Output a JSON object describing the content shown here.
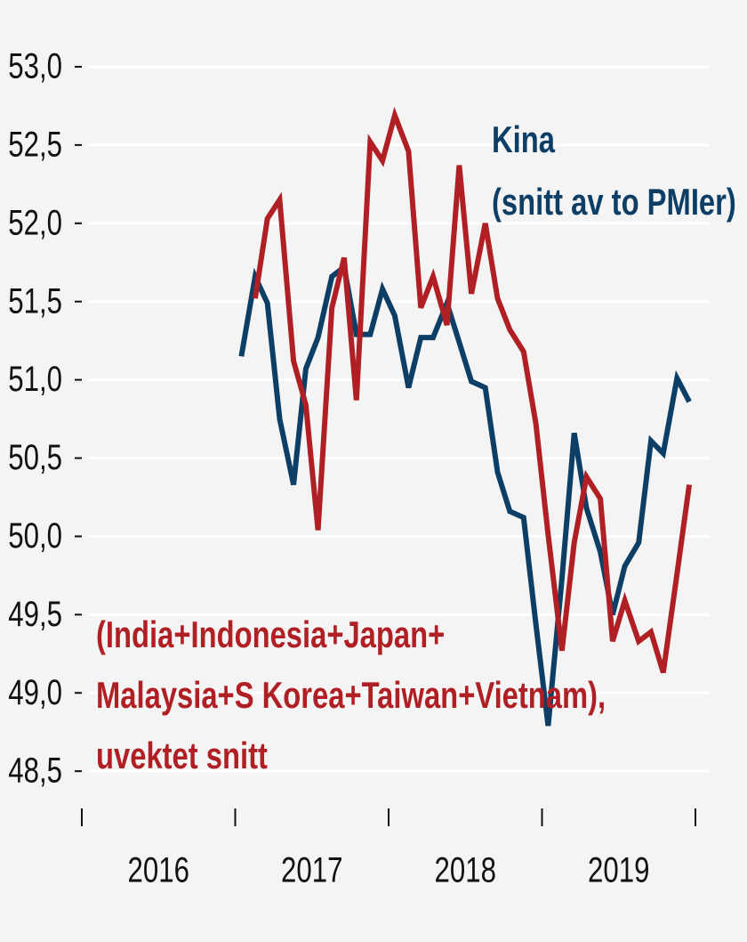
{
  "chart_data": {
    "type": "line",
    "x": [
      2017.04,
      2017.13,
      2017.21,
      2017.29,
      2017.38,
      2017.46,
      2017.54,
      2017.63,
      2017.71,
      2017.79,
      2017.88,
      2017.96,
      2018.04,
      2018.13,
      2018.21,
      2018.29,
      2018.38,
      2018.46,
      2018.54,
      2018.63,
      2018.71,
      2018.79,
      2018.88,
      2018.96,
      2019.04,
      2019.13,
      2019.21,
      2019.29,
      2019.38,
      2019.46,
      2019.54,
      2019.63,
      2019.71,
      2019.79,
      2019.88,
      2019.96
    ],
    "series": [
      {
        "color": "#0d3f66",
        "values": [
          51.15,
          51.66,
          51.49,
          50.75,
          50.33,
          51.07,
          51.27,
          51.66,
          51.72,
          51.29,
          51.29,
          51.58,
          51.41,
          50.95,
          51.27,
          51.27,
          51.49,
          51.24,
          50.99,
          50.95,
          50.41,
          50.16,
          50.12,
          49.44,
          48.79,
          49.73,
          50.66,
          50.18,
          49.9,
          49.5,
          49.81,
          49.96,
          50.61,
          50.53,
          51.01,
          50.86
        ]
      },
      {
        "color": "#b01f24",
        "values": [
          null,
          51.52,
          52.03,
          52.15,
          51.12,
          50.84,
          50.04,
          51.46,
          51.78,
          50.87,
          52.52,
          52.4,
          52.69,
          52.46,
          51.46,
          51.66,
          51.35,
          52.37,
          51.55,
          52.0,
          51.52,
          51.32,
          51.18,
          50.72,
          50.01,
          49.27,
          49.96,
          50.38,
          50.24,
          49.33,
          49.59,
          49.33,
          49.39,
          49.13,
          49.76,
          50.33
        ]
      }
    ],
    "xlim": [
      2016,
      2020
    ],
    "xticks": [
      2016,
      2017,
      2018,
      2019,
      2020
    ],
    "year_labels": [
      "2016",
      "2017",
      "2018",
      "2019"
    ],
    "ylim": [
      48.3,
      53.1
    ],
    "yticks": [
      {
        "value": 48.5,
        "label": "48,5"
      },
      {
        "value": 49,
        "label": "49,0"
      },
      {
        "value": 49.5,
        "label": "49,5"
      },
      {
        "value": 50,
        "label": "50,0"
      },
      {
        "value": 50.5,
        "label": "50,5"
      },
      {
        "value": 51,
        "label": "51,0"
      },
      {
        "value": 51.5,
        "label": "51,5"
      },
      {
        "value": 52,
        "label": "52,0"
      },
      {
        "value": 52.5,
        "label": "52,5"
      },
      {
        "value": 53,
        "label": "53,0"
      }
    ],
    "grid": true,
    "annotations": [
      {
        "color": "#0d3f66",
        "text": [
          "Kina",
          "(snitt av to PMIer)"
        ]
      },
      {
        "color": "#b01f24",
        "text": [
          "(India+Indonesia+Japan+",
          "Malaysia+S Korea+Taiwan+Vietnam),",
          "uvektet snitt"
        ]
      }
    ]
  }
}
